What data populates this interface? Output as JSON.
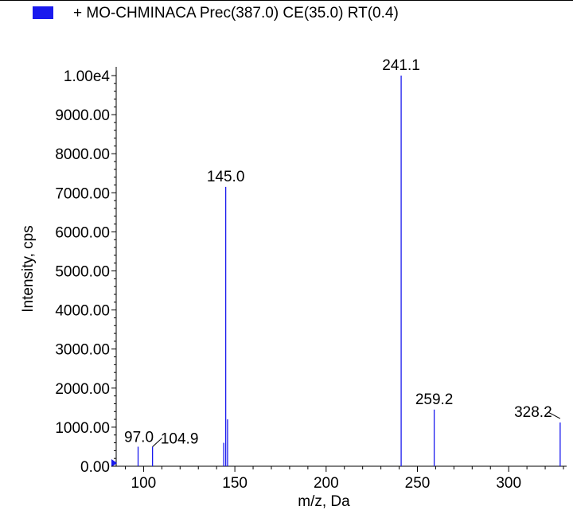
{
  "legend": {
    "label": "+ MO-CHMINACA Prec(387.0) CE(35.0) RT(0.4)",
    "swatch_color": "#1a1aee"
  },
  "chart_data": {
    "type": "bar",
    "title": "",
    "xlabel": "m/z, Da",
    "ylabel": "Intensity, cps",
    "xlim": [
      85,
      330
    ],
    "ylim": [
      0,
      10000
    ],
    "x_ticks": [
      100,
      150,
      200,
      250,
      300
    ],
    "y_ticks": [
      0,
      1000,
      2000,
      3000,
      4000,
      5000,
      6000,
      7000,
      8000,
      9000,
      10000
    ],
    "y_tick_labels": [
      "0.00",
      "1000.00",
      "2000.00",
      "3000.00",
      "4000.00",
      "5000.00",
      "6000.00",
      "7000.00",
      "8000.00",
      "9000.00",
      "1.00e4"
    ],
    "bar_color": "#1a1aee",
    "peaks": [
      {
        "x": 97.0,
        "y": 500,
        "label": "97.0"
      },
      {
        "x": 104.9,
        "y": 500,
        "label": "104.9"
      },
      {
        "x": 143.9,
        "y": 600,
        "label": ""
      },
      {
        "x": 145.0,
        "y": 7150,
        "label": "145.0"
      },
      {
        "x": 146.0,
        "y": 1200,
        "label": ""
      },
      {
        "x": 241.1,
        "y": 10000,
        "label": "241.1"
      },
      {
        "x": 259.2,
        "y": 1450,
        "label": "259.2"
      },
      {
        "x": 328.2,
        "y": 1120,
        "label": "328.2"
      }
    ]
  }
}
